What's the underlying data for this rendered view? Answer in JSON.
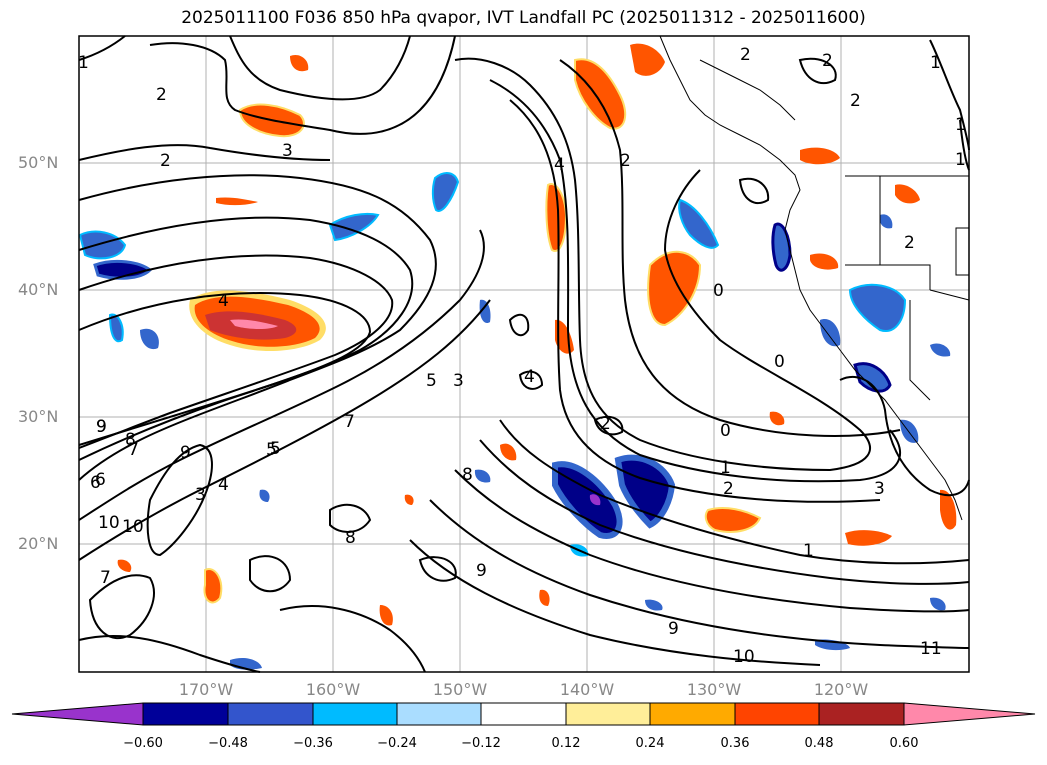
{
  "title": "2025011100 F036 850 hPa qvapor, IVT Landfall PC (2025011312 - 2025011600)",
  "latitude_labels": [
    "50°N",
    "40°N",
    "30°N",
    "20°N"
  ],
  "longitude_labels": [
    "170°W",
    "160°W",
    "150°W",
    "140°W",
    "130°W",
    "120°W"
  ],
  "colorbar": {
    "ticks": [
      "−0.60",
      "−0.48",
      "−0.36",
      "−0.24",
      "−0.12",
      "0.12",
      "0.24",
      "0.36",
      "0.48",
      "0.60"
    ],
    "colors": [
      "#9933cc",
      "#000099",
      "#3355cc",
      "#00bbff",
      "#aaddff",
      "#ffffff",
      "#ffee99",
      "#ffaa00",
      "#ff4400",
      "#aa2222",
      "#ff88aa"
    ]
  },
  "contour_labels": [
    "1",
    "2",
    "2",
    "2",
    "2",
    "2",
    "3",
    "2",
    "4",
    "1",
    "1",
    "1",
    "2",
    "4",
    "5",
    "0",
    "0",
    "0",
    "1",
    "2",
    "3",
    "4",
    "7",
    "8",
    "9",
    "9",
    "9",
    "10",
    "11",
    "10",
    "3",
    "5",
    "6",
    "7",
    "8",
    "9",
    "1",
    "2",
    "3",
    "4",
    "5",
    "6",
    "7",
    "8",
    "9",
    "10"
  ],
  "colors": {
    "fill_blue": "#3366cc",
    "fill_navy": "#000088",
    "fill_orange": "#ff5500",
    "fill_red": "#cc3333",
    "fill_pink": "#ff88aa",
    "fill_yellow": "#ffdd66",
    "fill_purple": "#9933cc"
  }
}
